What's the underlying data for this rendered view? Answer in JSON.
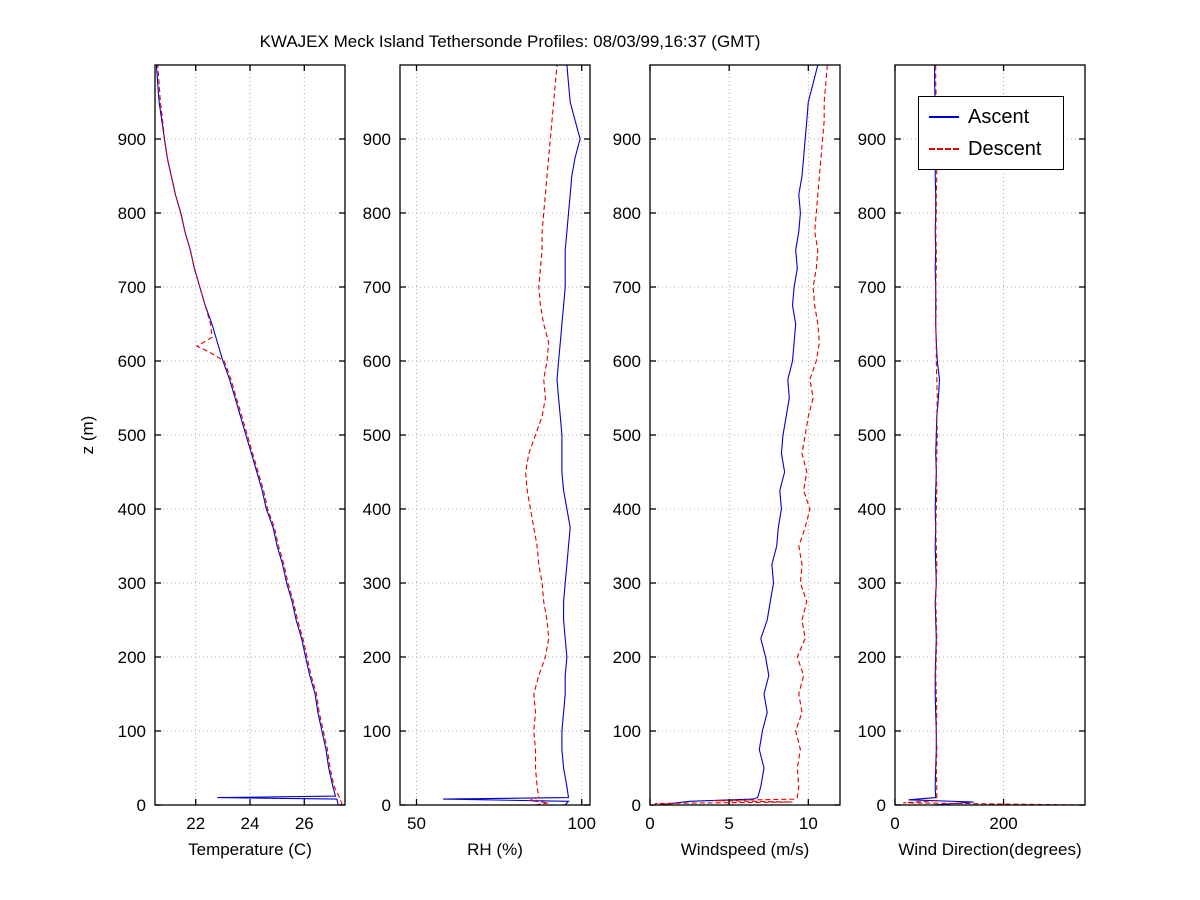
{
  "title": "KWAJEX Meck Island Tethersonde Profiles: 08/03/99,16:37 (GMT)",
  "ylabel": "z (m)",
  "legend": {
    "ascent": "Ascent",
    "descent": "Descent"
  },
  "colors": {
    "ascent": "#0000cc",
    "descent": "#dd0000",
    "grid": "#999999",
    "axis": "#000000"
  },
  "ylim": [
    0,
    1000
  ],
  "yticks": [
    0,
    100,
    200,
    300,
    400,
    500,
    600,
    700,
    800,
    900
  ],
  "chart_data": [
    {
      "type": "line",
      "xlabel": "Temperature (C)",
      "xlim": [
        20.5,
        27.5
      ],
      "xticks": [
        22,
        24,
        26
      ],
      "series": [
        {
          "name": "Ascent",
          "z": [
            0,
            8,
            10,
            12,
            25,
            50,
            75,
            100,
            125,
            150,
            175,
            200,
            225,
            250,
            275,
            300,
            325,
            350,
            375,
            400,
            425,
            450,
            475,
            500,
            525,
            550,
            575,
            600,
            625,
            650,
            675,
            700,
            725,
            750,
            775,
            800,
            825,
            850,
            875,
            900,
            925,
            950,
            975,
            1000
          ],
          "values": [
            27.25,
            27.2,
            22.8,
            27.15,
            27.05,
            26.9,
            26.8,
            26.65,
            26.5,
            26.4,
            26.2,
            26.05,
            25.9,
            25.7,
            25.55,
            25.35,
            25.2,
            25.0,
            24.85,
            24.6,
            24.45,
            24.25,
            24.05,
            23.85,
            23.65,
            23.45,
            23.25,
            23.0,
            22.8,
            22.6,
            22.35,
            22.15,
            21.95,
            21.8,
            21.6,
            21.45,
            21.25,
            21.1,
            20.95,
            20.85,
            20.75,
            20.65,
            20.6,
            20.55
          ]
        },
        {
          "name": "Descent",
          "z": [
            0,
            5,
            10,
            25,
            50,
            75,
            100,
            125,
            150,
            175,
            200,
            225,
            250,
            275,
            300,
            325,
            350,
            375,
            400,
            425,
            450,
            475,
            500,
            525,
            550,
            575,
            600,
            612,
            620,
            632,
            650,
            675,
            700,
            725,
            750,
            775,
            800,
            825,
            850,
            875,
            900,
            925,
            950,
            975,
            1000
          ],
          "values": [
            27.4,
            27.35,
            27.3,
            27.1,
            26.95,
            26.85,
            26.7,
            26.55,
            26.45,
            26.25,
            26.1,
            25.95,
            25.75,
            25.6,
            25.4,
            25.25,
            25.05,
            24.9,
            24.65,
            24.5,
            24.3,
            24.1,
            23.9,
            23.7,
            23.5,
            23.3,
            23.05,
            22.5,
            22.05,
            22.6,
            22.55,
            22.35,
            22.15,
            21.95,
            21.8,
            21.6,
            21.45,
            21.25,
            21.1,
            20.95,
            20.85,
            20.78,
            20.7,
            20.65,
            20.6
          ]
        }
      ]
    },
    {
      "type": "line",
      "xlabel": "RH (%)",
      "xlim": [
        45,
        102.5
      ],
      "xticks": [
        50,
        100
      ],
      "series": [
        {
          "name": "Ascent",
          "z": [
            0,
            5,
            8,
            10,
            25,
            50,
            75,
            100,
            125,
            150,
            175,
            200,
            225,
            250,
            275,
            300,
            325,
            350,
            375,
            400,
            425,
            450,
            475,
            500,
            525,
            550,
            575,
            600,
            625,
            650,
            675,
            700,
            725,
            750,
            775,
            800,
            825,
            850,
            875,
            900,
            925,
            950,
            975,
            1000
          ],
          "values": [
            95,
            96,
            58,
            96,
            95.5,
            94.5,
            94,
            94,
            94.5,
            95,
            95,
            95.5,
            95,
            94.5,
            94.5,
            95,
            95.5,
            96,
            96.5,
            95.5,
            94.5,
            94,
            94,
            94,
            93.5,
            93,
            92.5,
            93,
            93.5,
            94,
            94.5,
            95,
            95,
            95,
            95.5,
            96,
            96.5,
            97,
            98,
            99.5,
            98,
            96.5,
            96,
            95.5
          ]
        },
        {
          "name": "Descent",
          "z": [
            0,
            3,
            6,
            10,
            25,
            50,
            75,
            100,
            125,
            150,
            175,
            200,
            225,
            250,
            275,
            300,
            325,
            350,
            375,
            400,
            425,
            450,
            475,
            500,
            525,
            550,
            575,
            600,
            625,
            650,
            675,
            700,
            725,
            750,
            775,
            800,
            825,
            850,
            875,
            900,
            925,
            950,
            975,
            1000
          ],
          "values": [
            86,
            90,
            84,
            87,
            86.5,
            86,
            86,
            85.5,
            86,
            85.5,
            87,
            89,
            90,
            89.5,
            88.5,
            88,
            87,
            86.5,
            85.5,
            84.5,
            83.5,
            83,
            84,
            86,
            88,
            89,
            88.5,
            89.5,
            90,
            88.5,
            87.5,
            87,
            87.5,
            88,
            88,
            88.5,
            89,
            89.5,
            90,
            90.5,
            91,
            91.5,
            92,
            92.5
          ]
        }
      ]
    },
    {
      "type": "line",
      "xlabel": "Windspeed (m/s)",
      "xlim": [
        0,
        12
      ],
      "xticks": [
        0,
        5,
        10
      ],
      "series": [
        {
          "name": "Ascent",
          "z": [
            0,
            5,
            8,
            10,
            25,
            50,
            75,
            100,
            125,
            150,
            175,
            200,
            225,
            250,
            275,
            300,
            325,
            350,
            375,
            400,
            425,
            450,
            475,
            500,
            525,
            550,
            575,
            600,
            625,
            650,
            675,
            700,
            725,
            750,
            775,
            800,
            825,
            850,
            875,
            900,
            925,
            950,
            975,
            1000
          ],
          "values": [
            0.5,
            2.5,
            6.5,
            6.8,
            7.0,
            7.2,
            6.9,
            7.1,
            7.4,
            7.2,
            7.5,
            7.3,
            7.0,
            7.4,
            7.6,
            7.8,
            7.7,
            8.0,
            8.1,
            8.3,
            8.2,
            8.5,
            8.3,
            8.4,
            8.6,
            8.8,
            8.7,
            9.0,
            9.1,
            9.2,
            9.0,
            9.1,
            9.3,
            9.2,
            9.4,
            9.5,
            9.4,
            9.6,
            9.7,
            9.8,
            9.9,
            10.0,
            10.3,
            10.6
          ]
        },
        {
          "name": "Descent",
          "z": [
            0,
            2,
            4,
            6,
            8,
            10,
            25,
            50,
            75,
            100,
            125,
            150,
            175,
            200,
            225,
            250,
            275,
            300,
            325,
            350,
            375,
            400,
            425,
            450,
            475,
            500,
            525,
            550,
            575,
            600,
            625,
            650,
            675,
            700,
            725,
            750,
            775,
            800,
            825,
            850,
            875,
            900,
            925,
            950,
            975,
            1000
          ],
          "values": [
            1.5,
            0.3,
            9.0,
            4.0,
            9.2,
            9.3,
            9.4,
            9.3,
            9.5,
            9.2,
            9.6,
            9.4,
            9.7,
            9.3,
            9.8,
            9.6,
            9.9,
            9.5,
            9.6,
            9.4,
            9.8,
            10.1,
            9.7,
            9.9,
            9.6,
            9.8,
            10.0,
            10.3,
            10.1,
            10.5,
            10.7,
            10.6,
            10.4,
            10.3,
            10.5,
            10.6,
            10.4,
            10.5,
            10.6,
            10.7,
            10.8,
            10.9,
            11.0,
            11.0,
            11.1,
            11.2
          ]
        }
      ]
    },
    {
      "type": "line",
      "xlabel": "Wind Direction(degrees)",
      "xlim": [
        0,
        350
      ],
      "xticks": [
        0,
        200
      ],
      "series": [
        {
          "name": "Ascent",
          "z": [
            0,
            4,
            7,
            10,
            25,
            50,
            75,
            100,
            125,
            150,
            175,
            200,
            225,
            250,
            275,
            300,
            325,
            350,
            375,
            400,
            425,
            450,
            475,
            500,
            525,
            550,
            575,
            600,
            625,
            650,
            675,
            700,
            725,
            750,
            775,
            800,
            825,
            850,
            875,
            900,
            925,
            950,
            975,
            1000
          ],
          "values": [
            70,
            145,
            25,
            75,
            74,
            75,
            76,
            76,
            75,
            74,
            74,
            75,
            76,
            75,
            74,
            76,
            75,
            74,
            75,
            74,
            75,
            76,
            75,
            76,
            77,
            80,
            82,
            78,
            76,
            75,
            75,
            75,
            74,
            75,
            74,
            75,
            75,
            74,
            75,
            75,
            74,
            74,
            73,
            73
          ]
        },
        {
          "name": "Descent",
          "z": [
            0,
            3,
            6,
            10,
            25,
            50,
            75,
            100,
            125,
            150,
            175,
            200,
            225,
            250,
            275,
            300,
            325,
            350,
            375,
            400,
            425,
            450,
            475,
            500,
            525,
            550,
            575,
            600,
            625,
            650,
            675,
            700,
            725,
            750,
            775,
            800,
            825,
            850,
            875,
            900,
            925,
            950,
            975,
            1000
          ],
          "values": [
            345,
            15,
            78,
            77,
            77,
            76,
            77,
            76,
            77,
            76,
            75,
            76,
            77,
            76,
            75,
            76,
            77,
            76,
            75,
            76,
            77,
            76,
            77,
            78,
            77,
            78,
            77,
            76,
            76,
            75,
            76,
            75,
            76,
            76,
            75,
            76,
            76,
            77,
            76,
            77,
            76,
            76,
            75,
            75
          ]
        }
      ]
    }
  ]
}
